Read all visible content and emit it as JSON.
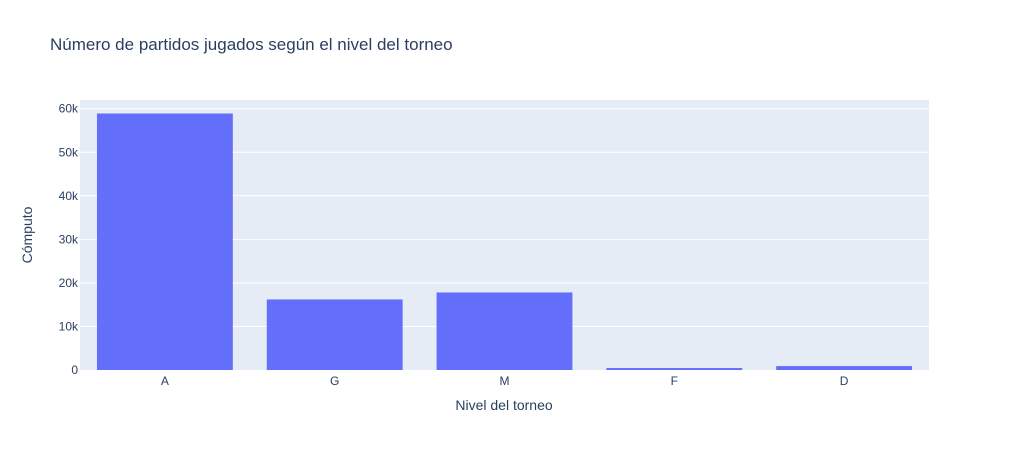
{
  "chart_data": {
    "type": "bar",
    "title": "Número de partidos jugados según el nivel del torneo",
    "xlabel": "Nivel del torneo",
    "ylabel": "Cómputo",
    "categories": [
      "A",
      "G",
      "M",
      "F",
      "D"
    ],
    "values": [
      58900,
      16200,
      17800,
      450,
      900
    ],
    "ylim": [
      0,
      62000
    ],
    "yticks": [
      0,
      10000,
      20000,
      30000,
      40000,
      50000,
      60000
    ],
    "ytick_labels": [
      "0",
      "10k",
      "20k",
      "30k",
      "40k",
      "50k",
      "60k"
    ],
    "grid": true,
    "legend": "none",
    "colors": {
      "bar": "#636efa",
      "plot_background": "#e5ecf6",
      "grid": "#ffffff",
      "text": "#2a3f5f"
    }
  }
}
